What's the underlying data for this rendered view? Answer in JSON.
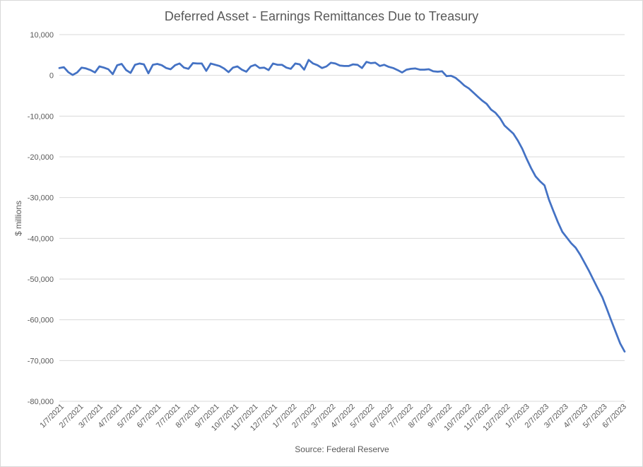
{
  "chart_data": {
    "type": "line",
    "title": "Deferred Asset - Earnings Remittances Due to Treasury",
    "ylabel": "$ millions",
    "xlabel": "Source: Federal Reserve",
    "ylim": [
      -80000,
      10000
    ],
    "yticks": [
      10000,
      0,
      -10000,
      -20000,
      -30000,
      -40000,
      -50000,
      -60000,
      -70000,
      -80000
    ],
    "ytick_labels": [
      "10,000",
      "0",
      "-10,000",
      "-20,000",
      "-30,000",
      "-40,000",
      "-50,000",
      "-60,000",
      "-70,000",
      "-80,000"
    ],
    "xtick_labels": [
      "1/7/2021",
      "2/7/2021",
      "3/7/2021",
      "4/7/2021",
      "5/7/2021",
      "6/7/2021",
      "7/7/2021",
      "8/7/2021",
      "9/7/2021",
      "10/7/2021",
      "11/7/2021",
      "12/7/2021",
      "1/7/2022",
      "2/7/2022",
      "3/7/2022",
      "4/7/2022",
      "5/7/2022",
      "6/7/2022",
      "7/7/2022",
      "8/7/2022",
      "9/7/2022",
      "10/7/2022",
      "11/7/2022",
      "12/7/2022",
      "1/7/2023",
      "2/7/2023",
      "3/7/2023",
      "4/7/2023",
      "5/7/2023",
      "6/7/2023"
    ],
    "grid": true,
    "legend": "none",
    "line_color": "#4472c4",
    "series": [
      {
        "values": [
          1800,
          2000,
          800,
          100,
          700,
          1900,
          1700,
          1300,
          700,
          2200,
          1900,
          1500,
          300,
          2500,
          2800,
          1300,
          600,
          2600,
          2900,
          2700,
          500,
          2600,
          2800,
          2500,
          1800,
          1500,
          2500,
          2900,
          1900,
          1600,
          3000,
          2900,
          2900,
          1100,
          2900,
          2600,
          2300,
          1700,
          800,
          1900,
          2200,
          1400,
          900,
          2200,
          2600,
          1800,
          1900,
          1300,
          2900,
          2600,
          2600,
          1900,
          1600,
          2900,
          2700,
          1400,
          3800,
          2900,
          2500,
          1800,
          2200,
          3100,
          2900,
          2400,
          2300,
          2300,
          2700,
          2600,
          1800,
          3300,
          3000,
          3100,
          2300,
          2600,
          2100,
          1800,
          1300,
          700,
          1400,
          1600,
          1700,
          1400,
          1400,
          1500,
          1000,
          900,
          1000,
          -200,
          -100,
          -600,
          -1500,
          -2500,
          -3200,
          -4200,
          -5200,
          -6200,
          -7000,
          -8400,
          -9200,
          -10500,
          -12300,
          -13300,
          -14300,
          -16000,
          -18000,
          -20500,
          -22800,
          -24800,
          -26000,
          -27000,
          -30500,
          -33300,
          -36000,
          -38400,
          -39800,
          -41200,
          -42300,
          -44000,
          -46000,
          -48000,
          -50200,
          -52400,
          -54500,
          -57300,
          -60200,
          -63000,
          -65800,
          -67800
        ]
      }
    ]
  }
}
